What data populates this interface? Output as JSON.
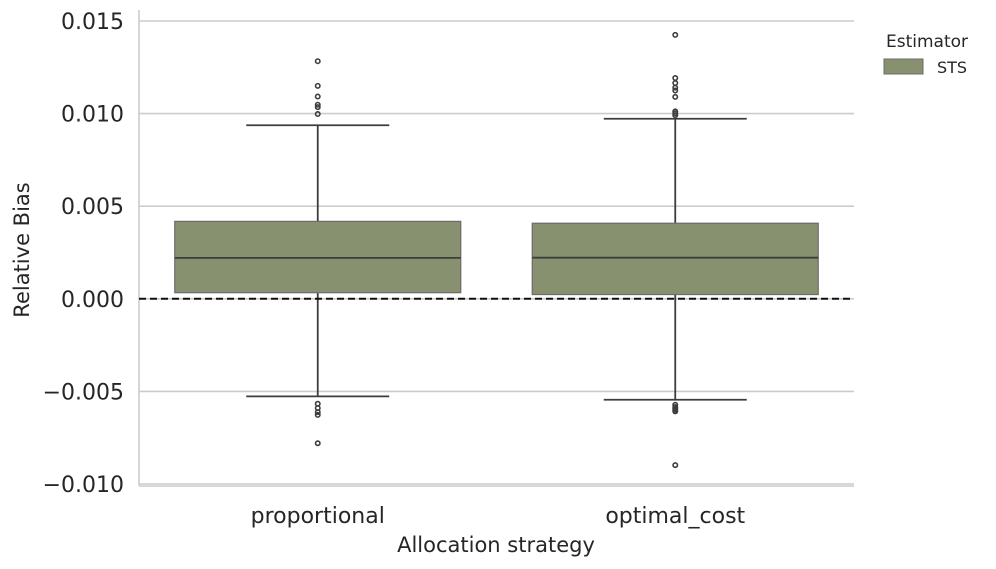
{
  "chart_data": {
    "type": "box",
    "xlabel": "Allocation strategy",
    "ylabel": "Relative Bias",
    "ylim": [
      -0.0102,
      0.0155
    ],
    "yticks": [
      0.015,
      0.01,
      0.005,
      0.0,
      -0.005,
      -0.01
    ],
    "ytick_labels": [
      "0.015",
      "0.010",
      "0.005",
      "0.000",
      "−0.005",
      "−0.010"
    ],
    "grid": "horizontal",
    "reference_line": {
      "y": 0.0,
      "style": "dashed"
    },
    "legend": {
      "title": "Estimator",
      "position": "top-right",
      "entries": [
        "STS"
      ]
    },
    "categories": [
      "proportional",
      "optimal_cost"
    ],
    "series": [
      {
        "name": "STS",
        "color": "#88916f",
        "boxes": [
          {
            "category": "proportional",
            "q1": 0.00033,
            "median": 0.00221,
            "q3": 0.00418,
            "whisker_low": -0.00527,
            "whisker_high": 0.00937,
            "outliers": [
              0.01283,
              0.0115,
              0.01092,
              0.01048,
              0.01035,
              0.00998,
              -0.00567,
              -0.0059,
              -0.00612,
              -0.00627,
              -0.0078
            ]
          },
          {
            "category": "optimal_cost",
            "q1": 0.00023,
            "median": 0.00222,
            "q3": 0.00408,
            "whisker_low": -0.00545,
            "whisker_high": 0.00972,
            "outliers": [
              0.01425,
              0.01192,
              0.01165,
              0.0114,
              0.01125,
              0.0109,
              0.01012,
              0.01002,
              0.00992,
              -0.00572,
              -0.00584,
              -0.00592,
              -0.006,
              -0.00608,
              -0.00898
            ]
          }
        ]
      }
    ]
  }
}
